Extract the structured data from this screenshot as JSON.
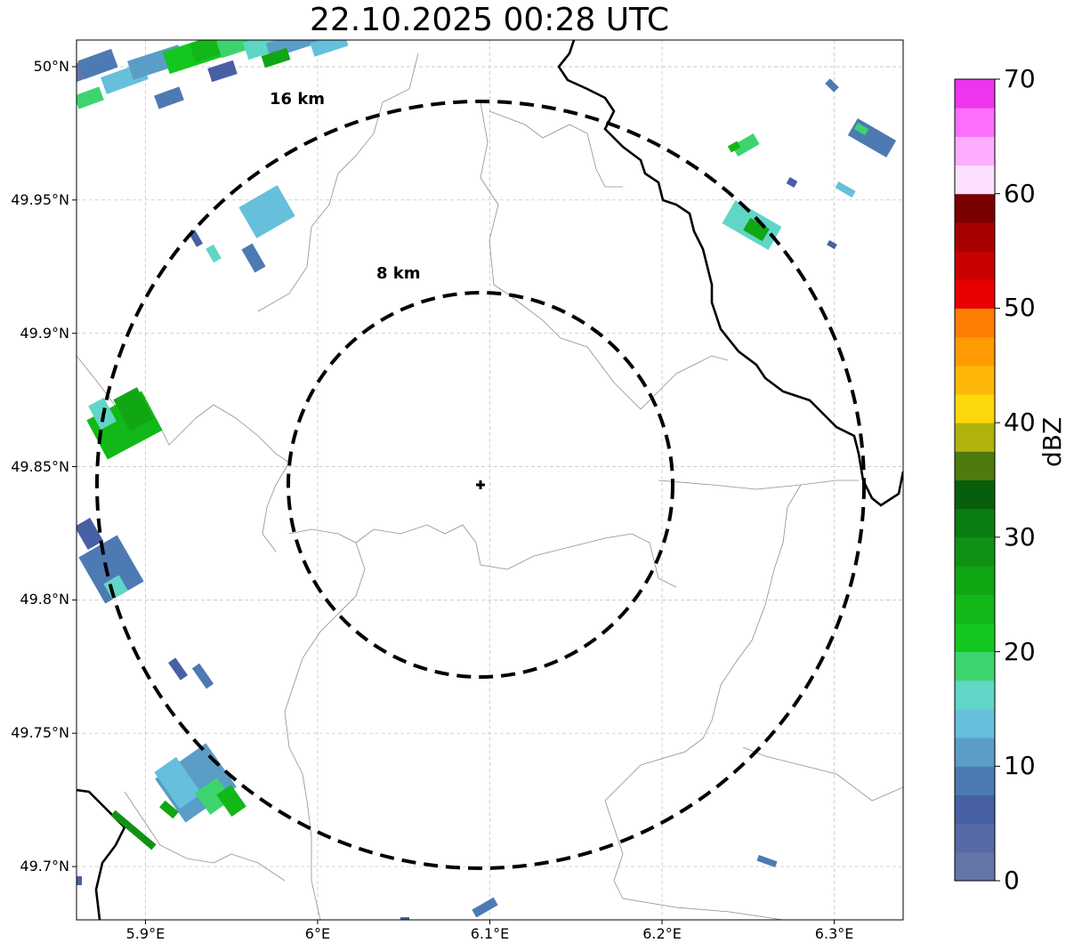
{
  "title": "22.10.2025 00:28 UTC",
  "map": {
    "extent": {
      "lon_min": 5.86,
      "lon_max": 6.34,
      "lat_min": 49.68,
      "lat_max": 50.01
    },
    "lat_ticks": [
      {
        "value": 50.0,
        "label": "50°N"
      },
      {
        "value": 49.95,
        "label": "49.95°N"
      },
      {
        "value": 49.9,
        "label": "49.9°N"
      },
      {
        "value": 49.85,
        "label": "49.85°N"
      },
      {
        "value": 49.8,
        "label": "49.8°N"
      },
      {
        "value": 49.75,
        "label": "49.75°N"
      },
      {
        "value": 49.7,
        "label": "49.7°N"
      }
    ],
    "lon_ticks": [
      {
        "value": 5.9,
        "label": "5.9°E"
      },
      {
        "value": 6.0,
        "label": "6°E"
      },
      {
        "value": 6.1,
        "label": "6.1°E"
      },
      {
        "value": 6.2,
        "label": "6.2°E"
      },
      {
        "value": 6.3,
        "label": "6.3°E"
      }
    ],
    "radar_site": {
      "lon": 6.095,
      "lat": 49.843
    },
    "range_rings": [
      {
        "label": "8 km",
        "radius_km": 8
      },
      {
        "label": "16 km",
        "radius_km": 16
      }
    ]
  },
  "colorbar": {
    "label": "dBZ",
    "min": 0,
    "max": 70,
    "ticks": [
      "0",
      "10",
      "20",
      "30",
      "40",
      "50",
      "60",
      "70"
    ],
    "colors": [
      "#6475a8",
      "#566aa6",
      "#4760a4",
      "#4d7ab2",
      "#5a9dc6",
      "#66bfdb",
      "#60d6c6",
      "#3ed46d",
      "#13c71e",
      "#12b818",
      "#10a614",
      "#0f9214",
      "#0b7c12",
      "#075f0c",
      "#4e7a0e",
      "#b0b30d",
      "#fcd80a",
      "#feb707",
      "#fe9a03",
      "#fd7e03",
      "#e80000",
      "#c80000",
      "#a60000",
      "#7a0000",
      "#fde0fe",
      "#fdadfd",
      "#fd6ffd",
      "#ee35ee"
    ]
  }
}
